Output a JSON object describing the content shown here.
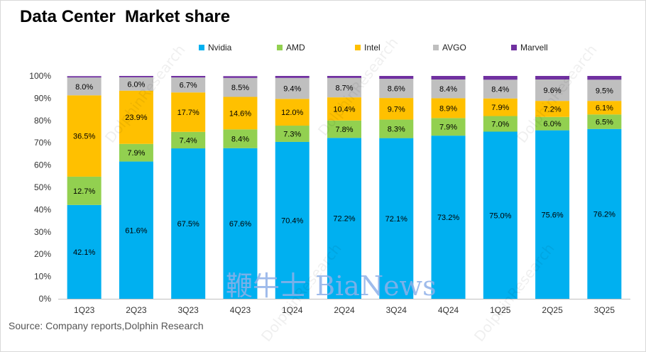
{
  "title": "Data Center  Market share",
  "source": "Source: Company reports,Dolphin Research",
  "watermark": "鞭牛士 BiaNews",
  "colors": {
    "Nvidia": "#00b0f0",
    "AMD": "#92d050",
    "Intel": "#ffc000",
    "AVGO": "#bfbfbf",
    "Marvell": "#7030a0"
  },
  "chart_data": {
    "type": "bar",
    "stacked": true,
    "title": "Data Center  Market share",
    "categories": [
      "1Q23",
      "2Q23",
      "3Q23",
      "4Q23",
      "1Q24",
      "2Q24",
      "3Q24",
      "4Q24",
      "1Q25",
      "2Q25",
      "3Q25"
    ],
    "y_ticks": [
      "0%",
      "10%",
      "20%",
      "30%",
      "40%",
      "50%",
      "60%",
      "70%",
      "80%",
      "90%",
      "100%"
    ],
    "ylim": [
      0,
      100
    ],
    "legend_position": "top",
    "grid": false,
    "series": [
      {
        "name": "Nvidia",
        "values": [
          42.1,
          61.6,
          67.5,
          67.6,
          70.4,
          72.2,
          72.1,
          73.2,
          75.0,
          75.6,
          76.2
        ],
        "labels": [
          "42.1%",
          "61.6%",
          "67.5%",
          "67.6%",
          "70.4%",
          "72.2%",
          "72.1%",
          "73.2%",
          "75.0%",
          "75.6%",
          "76.2%"
        ]
      },
      {
        "name": "AMD",
        "values": [
          12.7,
          7.9,
          7.4,
          8.4,
          7.3,
          7.8,
          8.3,
          7.9,
          7.0,
          6.0,
          6.5
        ],
        "labels": [
          "12.7%",
          "7.9%",
          "7.4%",
          "8.4%",
          "7.3%",
          "7.8%",
          "8.3%",
          "7.9%",
          "7.0%",
          "6.0%",
          "6.5%"
        ]
      },
      {
        "name": "Intel",
        "values": [
          36.5,
          23.9,
          17.7,
          14.6,
          12.0,
          10.4,
          9.7,
          8.9,
          7.9,
          7.2,
          6.1
        ],
        "labels": [
          "36.5%",
          "23.9%",
          "17.7%",
          "14.6%",
          "12.0%",
          "10.4%",
          "9.7%",
          "8.9%",
          "7.9%",
          "7.2%",
          "6.1%"
        ]
      },
      {
        "name": "AVGO",
        "values": [
          8.0,
          6.0,
          6.7,
          8.5,
          9.4,
          8.7,
          8.6,
          8.4,
          8.4,
          9.6,
          9.5
        ],
        "labels": [
          "8.0%",
          "6.0%",
          "6.7%",
          "8.5%",
          "9.4%",
          "8.7%",
          "8.6%",
          "8.4%",
          "8.4%",
          "9.6%",
          "9.5%"
        ]
      },
      {
        "name": "Marvell",
        "values": [
          0.6,
          0.6,
          0.7,
          0.8,
          0.9,
          0.9,
          1.3,
          1.6,
          1.7,
          1.6,
          1.7
        ]
      }
    ]
  }
}
